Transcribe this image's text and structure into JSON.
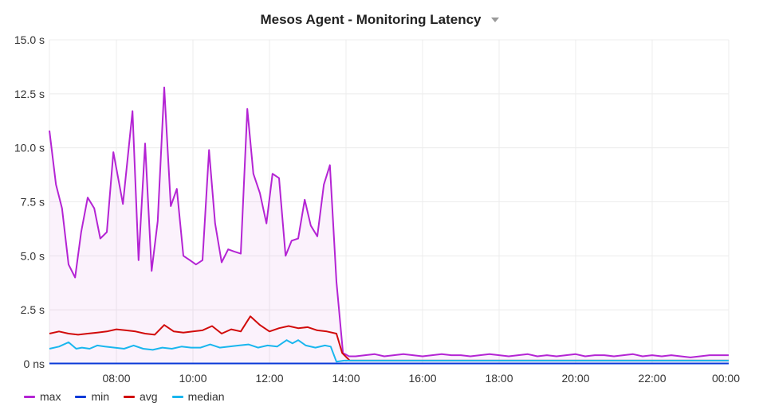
{
  "panel": {
    "title": "Mesos Agent - Monitoring Latency",
    "menu_icon": "chevron-down-icon"
  },
  "chart_data": {
    "type": "line",
    "title": "Mesos Agent - Monitoring Latency",
    "xlabel": "",
    "ylabel": "",
    "x_unit": "hours (clock time, 06:15 → 00:00)",
    "xlim": [
      6.25,
      24.0
    ],
    "ylim": [
      0,
      15
    ],
    "yticks": [
      0,
      2.5,
      5,
      7.5,
      10,
      12.5,
      15
    ],
    "ytick_labels": [
      "0 ns",
      "2.5 s",
      "5.0 s",
      "7.5 s",
      "10.0 s",
      "12.5 s",
      "15.0 s"
    ],
    "xticks": [
      8,
      10,
      12,
      14,
      16,
      18,
      20,
      22,
      24
    ],
    "xtick_labels": [
      "08:00",
      "10:00",
      "12:00",
      "14:00",
      "16:00",
      "18:00",
      "20:00",
      "22:00",
      "00:00"
    ],
    "grid": true,
    "legend_position": "bottom-left",
    "series": [
      {
        "name": "max",
        "color": "#b424d4",
        "fill": true,
        "x": [
          6.25,
          6.42,
          6.58,
          6.75,
          6.92,
          7.08,
          7.25,
          7.42,
          7.58,
          7.75,
          7.92,
          8.17,
          8.42,
          8.58,
          8.75,
          8.92,
          9.08,
          9.25,
          9.42,
          9.58,
          9.75,
          9.92,
          10.08,
          10.25,
          10.42,
          10.58,
          10.75,
          10.92,
          11.08,
          11.25,
          11.42,
          11.58,
          11.75,
          11.92,
          12.08,
          12.25,
          12.42,
          12.58,
          12.75,
          12.92,
          13.08,
          13.25,
          13.42,
          13.58,
          13.75,
          13.92,
          14.08,
          14.25,
          14.5,
          14.75,
          15.0,
          15.25,
          15.5,
          15.75,
          16.0,
          16.25,
          16.5,
          16.75,
          17.0,
          17.25,
          17.5,
          17.75,
          18.0,
          18.25,
          18.5,
          18.75,
          19.0,
          19.25,
          19.5,
          19.75,
          20.0,
          20.25,
          20.5,
          20.75,
          21.0,
          21.25,
          21.5,
          21.75,
          22.0,
          22.25,
          22.5,
          22.75,
          23.0,
          23.25,
          23.5,
          23.75,
          24.0
        ],
        "values": [
          10.8,
          8.3,
          7.2,
          4.6,
          4.0,
          6.1,
          7.7,
          7.2,
          5.8,
          6.1,
          9.8,
          7.4,
          11.7,
          4.8,
          10.2,
          4.3,
          6.6,
          12.8,
          7.3,
          8.1,
          5.0,
          4.8,
          4.6,
          4.8,
          9.9,
          6.5,
          4.7,
          5.3,
          5.2,
          5.1,
          11.8,
          8.8,
          7.9,
          6.5,
          8.8,
          8.6,
          5.0,
          5.7,
          5.8,
          7.6,
          6.4,
          5.9,
          8.3,
          9.2,
          3.8,
          0.5,
          0.35,
          0.35,
          0.4,
          0.45,
          0.35,
          0.4,
          0.45,
          0.4,
          0.35,
          0.4,
          0.45,
          0.4,
          0.4,
          0.35,
          0.4,
          0.45,
          0.4,
          0.35,
          0.4,
          0.45,
          0.35,
          0.4,
          0.35,
          0.4,
          0.45,
          0.35,
          0.4,
          0.4,
          0.35,
          0.4,
          0.45,
          0.35,
          0.4,
          0.35,
          0.4,
          0.35,
          0.3,
          0.35,
          0.4,
          0.4,
          0.4
        ]
      },
      {
        "name": "min",
        "color": "#0a3ad8",
        "fill": false,
        "x": [
          6.25,
          8.0,
          10.0,
          12.0,
          13.9,
          14.1,
          16.0,
          18.0,
          20.0,
          22.0,
          24.0
        ],
        "values": [
          0.02,
          0.02,
          0.02,
          0.02,
          0.02,
          0.02,
          0.02,
          0.02,
          0.02,
          0.02,
          0.02
        ]
      },
      {
        "name": "avg",
        "color": "#d10b0b",
        "fill": false,
        "x": [
          6.25,
          6.5,
          6.75,
          7.0,
          7.25,
          7.5,
          7.75,
          8.0,
          8.25,
          8.5,
          8.75,
          9.0,
          9.25,
          9.5,
          9.75,
          10.0,
          10.25,
          10.5,
          10.75,
          11.0,
          11.25,
          11.5,
          11.75,
          12.0,
          12.25,
          12.5,
          12.75,
          13.0,
          13.25,
          13.5,
          13.75,
          13.9,
          14.1,
          14.5,
          15.0,
          15.5,
          16.0,
          16.5,
          17.0,
          17.5,
          18.0,
          18.5,
          19.0,
          19.5,
          20.0,
          20.5,
          21.0,
          21.5,
          22.0,
          22.5,
          23.0,
          23.5,
          24.0
        ],
        "values": [
          1.4,
          1.5,
          1.4,
          1.35,
          1.4,
          1.45,
          1.5,
          1.6,
          1.55,
          1.5,
          1.4,
          1.35,
          1.8,
          1.5,
          1.45,
          1.5,
          1.55,
          1.75,
          1.4,
          1.6,
          1.5,
          2.2,
          1.8,
          1.5,
          1.65,
          1.75,
          1.65,
          1.7,
          1.55,
          1.5,
          1.4,
          0.5,
          0.15,
          0.15,
          0.15,
          0.15,
          0.15,
          0.15,
          0.15,
          0.15,
          0.15,
          0.15,
          0.15,
          0.15,
          0.15,
          0.15,
          0.15,
          0.15,
          0.15,
          0.15,
          0.15,
          0.15,
          0.15
        ]
      },
      {
        "name": "median",
        "color": "#19b6ee",
        "fill": false,
        "x": [
          6.25,
          6.5,
          6.75,
          6.95,
          7.1,
          7.3,
          7.5,
          7.7,
          7.95,
          8.2,
          8.45,
          8.7,
          8.95,
          9.2,
          9.45,
          9.7,
          9.95,
          10.2,
          10.45,
          10.7,
          10.95,
          11.2,
          11.45,
          11.7,
          11.95,
          12.2,
          12.45,
          12.6,
          12.75,
          12.95,
          13.2,
          13.45,
          13.6,
          13.75,
          13.95,
          14.2,
          14.5,
          15.0,
          15.5,
          16.0,
          16.5,
          17.0,
          17.5,
          18.0,
          18.5,
          19.0,
          19.5,
          20.0,
          20.5,
          21.0,
          21.5,
          22.0,
          22.5,
          23.0,
          23.5,
          24.0
        ],
        "values": [
          0.7,
          0.8,
          1.0,
          0.7,
          0.75,
          0.7,
          0.85,
          0.8,
          0.75,
          0.7,
          0.85,
          0.7,
          0.65,
          0.75,
          0.7,
          0.8,
          0.75,
          0.75,
          0.9,
          0.75,
          0.8,
          0.85,
          0.9,
          0.75,
          0.85,
          0.8,
          1.1,
          0.95,
          1.1,
          0.85,
          0.75,
          0.85,
          0.8,
          0.1,
          0.15,
          0.15,
          0.15,
          0.15,
          0.15,
          0.15,
          0.15,
          0.15,
          0.15,
          0.15,
          0.15,
          0.15,
          0.15,
          0.15,
          0.15,
          0.15,
          0.15,
          0.15,
          0.15,
          0.15,
          0.15,
          0.15
        ]
      }
    ]
  }
}
